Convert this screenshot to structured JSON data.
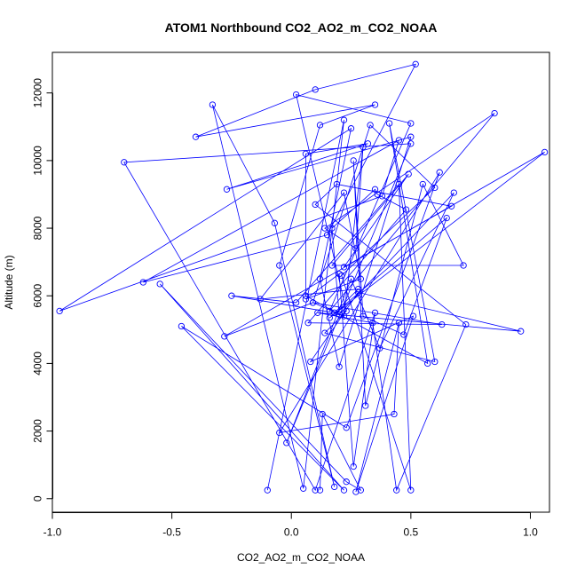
{
  "chart_data": {
    "type": "line",
    "title": "ATOM1 Northbound CO2_AO2_m_CO2_NOAA",
    "xlabel": "CO2_AO2_m_CO2_NOAA",
    "ylabel": "Altitude (m)",
    "xlim": [
      -1.0,
      1.08
    ],
    "ylim": [
      -400,
      13200
    ],
    "xticks": [
      -1.0,
      -0.5,
      0.0,
      0.5,
      1.0
    ],
    "xtick_labels": [
      "-1.0",
      "-0.5",
      "0.0",
      "0.5",
      "1.0"
    ],
    "yticks": [
      0,
      2000,
      4000,
      6000,
      8000,
      10000,
      12000
    ],
    "ytick_labels": [
      "0",
      "2000",
      "4000",
      "6000",
      "8000",
      "10000",
      "12000"
    ],
    "grid": false,
    "colors": {
      "series": "#0000ff",
      "axis": "#000000"
    },
    "series": [
      {
        "marker": "open-circle",
        "x": [
          -0.1,
          0.22,
          0.05,
          -0.33,
          -0.07,
          0.18,
          -0.05,
          0.12,
          0.35,
          -0.4,
          0.1,
          0.52,
          0.15,
          -0.62,
          0.45,
          0.38,
          -0.97,
          0.25,
          0.12,
          0.2,
          0.5,
          -0.27,
          0.32,
          0.06,
          0.06,
          0.57,
          0.41,
          0.6,
          0.14,
          0.23,
          0.02,
          0.5,
          0.16,
          0.85,
          0.14,
          0.27,
          0.3,
          0.22,
          0.09,
          0.63,
          0.07,
          0.48,
          0.36,
          0.35,
          0.17,
          0.2,
          0.68,
          0.37,
          0.25,
          -0.02,
          0.5,
          -0.7,
          0.1,
          0.35,
          0.26,
          0.2,
          0.06,
          0.29,
          0.22,
          -0.13,
          0.28,
          0.18,
          -0.25,
          0.02,
          0.45,
          0.5,
          0.21,
          0.6,
          0.33,
          0.09,
          -0.28,
          1.06,
          0.16,
          0.65,
          0.47,
          0.3,
          0.26,
          0.31,
          0.55,
          0.72,
          0.17,
          0.49,
          0.22,
          0.67,
          0.19,
          0.1,
          0.73,
          0.44,
          0.34,
          0.11,
          0.96,
          0.28,
          0.08,
          0.51,
          0.27,
          0.45,
          0.43,
          -0.05,
          0.62,
          0.23,
          -0.46,
          0.22,
          -0.55,
          0.23,
          0.29,
          0.13,
          0.12
        ],
        "y": [
          250,
          11200,
          300,
          11650,
          8150,
          350,
          6900,
          11050,
          11650,
          10700,
          12100,
          12850,
          7800,
          6400,
          10600,
          8950,
          5550,
          10950,
          6500,
          3900,
          10700,
          9150,
          10500,
          10200,
          6000,
          4000,
          11100,
          4050,
          4900,
          5550,
          11950,
          11100,
          5550,
          11400,
          8000,
          7400,
          10400,
          5400,
          5800,
          5150,
          5200,
          8550,
          9000,
          9150,
          8000,
          5450,
          9050,
          4450,
          6500,
          1650,
          10500,
          9950,
          250,
          5500,
          950,
          6650,
          5900,
          6500,
          9050,
          5900,
          6200,
          5500,
          6000,
          5800,
          9300,
          250,
          6600,
          9200,
          11050,
          5800,
          4800,
          10250,
          5350,
          8300,
          4850,
          5400,
          10000,
          2750,
          9300,
          6900,
          6900,
          9600,
          6850,
          8650,
          9300,
          8700,
          5150,
          250,
          5200,
          5500,
          4950,
          6100,
          4050,
          5400,
          200,
          5200,
          2500,
          1950,
          9650,
          2100,
          5100,
          250,
          6350,
          500,
          250,
          2500,
          250
        ]
      }
    ]
  }
}
